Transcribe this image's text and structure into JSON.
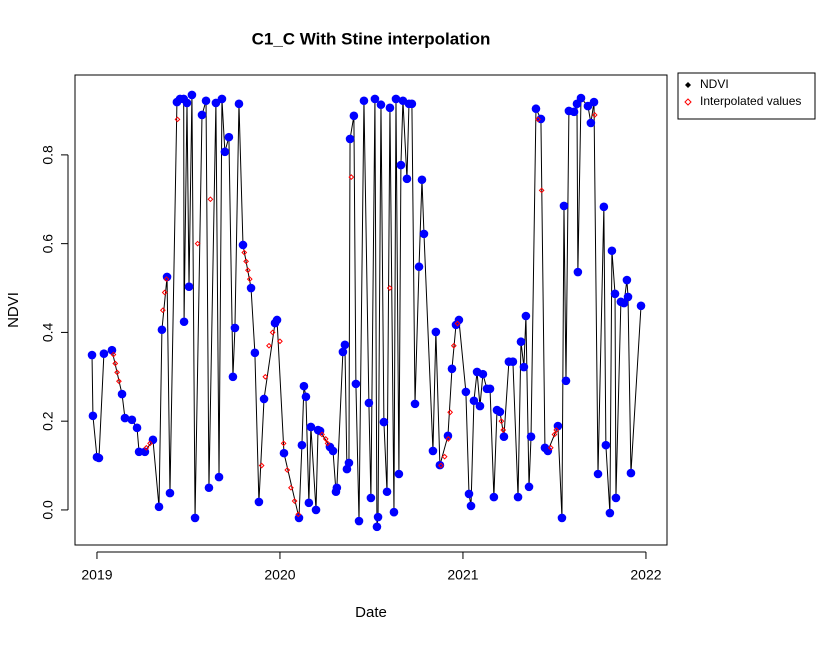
{
  "chart_data": {
    "type": "scatter",
    "title": "C1_C With Stine interpolation",
    "x_label": "Date",
    "y_label": "NDVI",
    "xlim": [
      2018.88,
      2022.115
    ],
    "ylim": [
      -0.079,
      0.98
    ],
    "xticks": [
      2019,
      2020,
      2021,
      2022
    ],
    "yticks": [
      {
        "value": 0,
        "label": "0.0"
      },
      0.2,
      0.4,
      0.6,
      0.8
    ],
    "grid": false,
    "legend_position": "outside-top-right",
    "series": [
      {
        "name": "NDVI",
        "color": "#0000ff",
        "line_color": "#000000",
        "x": [
          2018.973,
          2018.978,
          2019.0,
          2019.011,
          2019.038,
          2019.082,
          2019.137,
          2019.153,
          2019.191,
          2019.219,
          2019.23,
          2019.262,
          2019.306,
          2019.339,
          2019.355,
          2019.383,
          2019.399,
          2019.437,
          2019.454,
          2019.474,
          2019.476,
          2019.492,
          2019.503,
          2019.519,
          2019.536,
          2019.574,
          2019.596,
          2019.612,
          2019.65,
          2019.667,
          2019.683,
          2019.699,
          2019.721,
          2019.743,
          2019.754,
          2019.776,
          2019.798,
          2019.842,
          2019.863,
          2019.885,
          2019.913,
          2019.973,
          2019.984,
          2020.022,
          2020.104,
          2020.12,
          2020.131,
          2020.142,
          2020.158,
          2020.169,
          2020.197,
          2020.208,
          2020.219,
          2020.273,
          2020.29,
          2020.306,
          2020.311,
          2020.344,
          2020.355,
          2020.366,
          2020.377,
          2020.383,
          2020.404,
          2020.415,
          2020.432,
          2020.459,
          2020.486,
          2020.497,
          2020.519,
          2020.53,
          2020.536,
          2020.552,
          2020.568,
          2020.585,
          2020.601,
          2020.623,
          2020.634,
          2020.65,
          2020.661,
          2020.672,
          2020.694,
          2020.705,
          2020.721,
          2020.738,
          2020.76,
          2020.776,
          2020.787,
          2020.836,
          2020.852,
          2020.874,
          2020.918,
          2020.94,
          2020.962,
          2020.978,
          2021.016,
          2021.033,
          2021.044,
          2021.06,
          2021.077,
          2021.093,
          2021.109,
          2021.131,
          2021.148,
          2021.169,
          2021.186,
          2021.202,
          2021.224,
          2021.251,
          2021.273,
          2021.301,
          2021.317,
          2021.333,
          2021.344,
          2021.361,
          2021.372,
          2021.399,
          2021.426,
          2021.448,
          2021.464,
          2021.519,
          2021.541,
          2021.552,
          2021.563,
          2021.579,
          2021.607,
          2021.623,
          2021.628,
          2021.645,
          2021.683,
          2021.699,
          2021.716,
          2021.738,
          2021.77,
          2021.781,
          2021.803,
          2021.814,
          2021.831,
          2021.836,
          2021.863,
          2021.88,
          2021.896,
          2021.902,
          2021.918,
          2021.973
        ],
        "values": [
          0.349,
          0.212,
          0.119,
          0.117,
          0.352,
          0.36,
          0.261,
          0.207,
          0.203,
          0.185,
          0.131,
          0.131,
          0.158,
          0.007,
          0.406,
          0.525,
          0.038,
          0.919,
          0.926,
          0.926,
          0.424,
          0.917,
          0.503,
          0.935,
          -0.018,
          0.89,
          0.922,
          0.05,
          0.917,
          0.074,
          0.926,
          0.807,
          0.84,
          0.3,
          0.41,
          0.915,
          0.597,
          0.5,
          0.354,
          0.018,
          0.25,
          0.421,
          0.428,
          0.128,
          -0.018,
          0.146,
          0.279,
          0.255,
          0.016,
          0.187,
          0.0,
          0.18,
          0.178,
          0.142,
          0.133,
          0.041,
          0.05,
          0.356,
          0.372,
          0.092,
          0.106,
          0.836,
          0.888,
          0.284,
          -0.025,
          0.922,
          0.241,
          0.027,
          0.926,
          -0.038,
          -0.016,
          0.913,
          0.198,
          0.041,
          0.906,
          -0.005,
          0.926,
          0.081,
          0.777,
          0.922,
          0.746,
          0.915,
          0.915,
          0.239,
          0.548,
          0.744,
          0.622,
          0.133,
          0.401,
          0.101,
          0.167,
          0.318,
          0.417,
          0.428,
          0.266,
          0.036,
          0.009,
          0.246,
          0.311,
          0.234,
          0.306,
          0.273,
          0.273,
          0.029,
          0.225,
          0.221,
          0.165,
          0.334,
          0.334,
          0.029,
          0.379,
          0.322,
          0.437,
          0.052,
          0.165,
          0.904,
          0.881,
          0.14,
          0.133,
          0.189,
          -0.018,
          0.685,
          0.291,
          0.899,
          0.897,
          0.915,
          0.536,
          0.928,
          0.91,
          0.872,
          0.919,
          0.081,
          0.683,
          0.146,
          -0.007,
          0.584,
          0.487,
          0.027,
          0.469,
          0.466,
          0.518,
          0.48,
          0.083,
          0.46
        ]
      },
      {
        "name": "Interpolated values",
        "color": "#ff0000",
        "x": [
          2019.09,
          2019.1,
          2019.11,
          2019.12,
          2019.27,
          2019.29,
          2019.36,
          2019.37,
          2019.38,
          2019.44,
          2019.55,
          2019.62,
          2019.805,
          2019.815,
          2019.825,
          2019.835,
          2019.9,
          2019.92,
          2019.94,
          2019.96,
          2020.0,
          2020.02,
          2020.04,
          2020.06,
          2020.08,
          2020.1,
          2020.23,
          2020.25,
          2020.26,
          2020.39,
          2020.6,
          2020.88,
          2020.9,
          2020.92,
          2020.93,
          2020.95,
          2020.97,
          2021.21,
          2021.22,
          2021.41,
          2021.43,
          2021.48,
          2021.5,
          2021.51,
          2021.72
        ],
        "values": [
          0.35,
          0.33,
          0.31,
          0.29,
          0.14,
          0.15,
          0.45,
          0.49,
          0.52,
          0.88,
          0.6,
          0.7,
          0.58,
          0.56,
          0.54,
          0.52,
          0.1,
          0.3,
          0.37,
          0.4,
          0.38,
          0.15,
          0.09,
          0.05,
          0.02,
          -0.01,
          0.17,
          0.16,
          0.15,
          0.75,
          0.5,
          0.1,
          0.12,
          0.16,
          0.22,
          0.37,
          0.42,
          0.2,
          0.18,
          0.88,
          0.72,
          0.14,
          0.17,
          0.18,
          0.89
        ]
      }
    ]
  }
}
